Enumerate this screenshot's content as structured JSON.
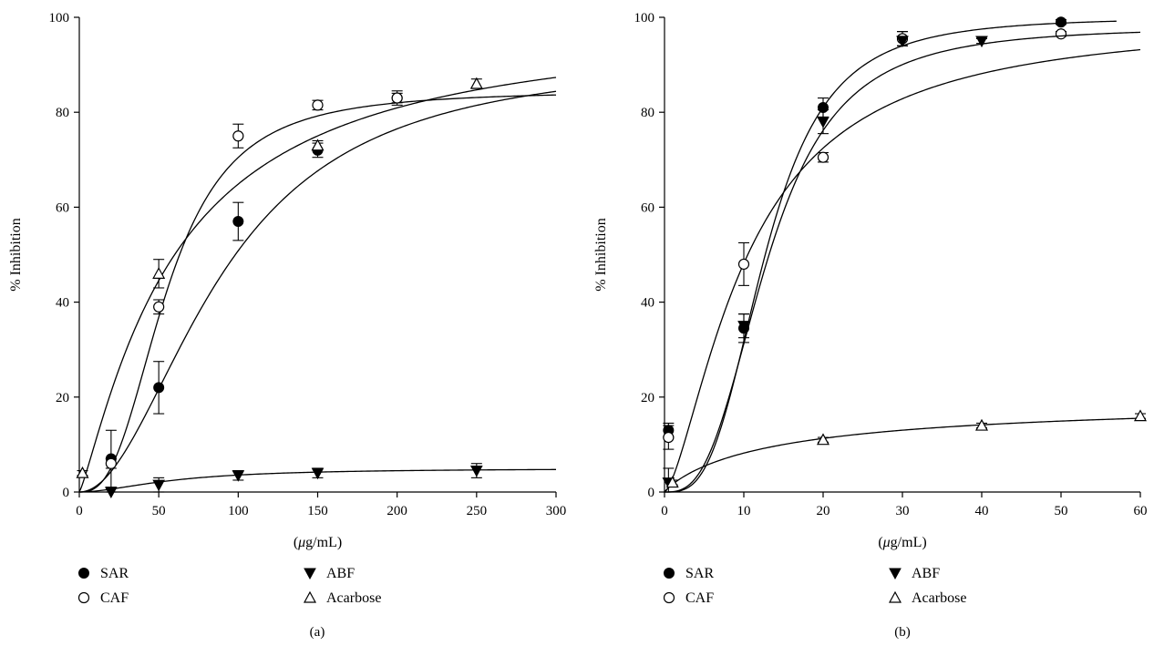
{
  "chart_data": [
    {
      "type": "scatter",
      "panel_label": "(a)",
      "xlabel_prefix": "(",
      "xlabel_mu": "μ",
      "xlabel_suffix": "g/mL)",
      "ylabel": "% Inhibition",
      "xlim": [
        0,
        300
      ],
      "ylim": [
        0,
        100
      ],
      "xticks": [
        0,
        50,
        100,
        150,
        200,
        250,
        300
      ],
      "yticks": [
        0,
        20,
        40,
        60,
        80,
        100
      ],
      "legend_position": "bottom",
      "series": [
        {
          "name": "SAR",
          "marker": "filled-circle",
          "x": [
            20,
            50,
            100,
            150,
            200
          ],
          "y": [
            7,
            22,
            57,
            72,
            83
          ],
          "err": [
            6,
            5.5,
            4,
            1.5,
            1.5
          ],
          "curve": {
            "model": "hill",
            "top": 92,
            "ec50": 90,
            "n": 2.0,
            "xmax": 300
          }
        },
        {
          "name": "CAF",
          "marker": "open-circle",
          "x": [
            20,
            50,
            100,
            150,
            200
          ],
          "y": [
            6,
            39,
            75,
            81.5,
            83
          ],
          "err": [
            1,
            1.5,
            2.5,
            1,
            1
          ],
          "curve": {
            "model": "hill",
            "top": 84.5,
            "ec50": 55,
            "n": 2.7,
            "xmax": 300
          }
        },
        {
          "name": "ABF",
          "marker": "filled-triangle-down",
          "x": [
            20,
            50,
            100,
            150,
            250
          ],
          "y": [
            0,
            1.5,
            3.5,
            4,
            4.5
          ],
          "err": [
            1,
            1.5,
            1,
            1,
            1.5
          ],
          "curve": {
            "model": "hill",
            "top": 5,
            "ec50": 60,
            "n": 1.8,
            "xmax": 300
          }
        },
        {
          "name": "Acarbose",
          "marker": "open-triangle-up",
          "x": [
            2,
            50,
            150,
            250
          ],
          "y": [
            4,
            46,
            73,
            86
          ],
          "err": [
            0.5,
            3,
            1,
            1
          ],
          "curve": {
            "model": "hill",
            "top": 100,
            "ec50": 60,
            "n": 1.2,
            "xmax": 300
          }
        }
      ]
    },
    {
      "type": "scatter",
      "panel_label": "(b)",
      "xlabel_prefix": "(",
      "xlabel_mu": "μ",
      "xlabel_suffix": "g/mL)",
      "ylabel": "% Inhibition",
      "xlim": [
        0,
        60
      ],
      "ylim": [
        0,
        100
      ],
      "xticks": [
        0,
        10,
        20,
        30,
        40,
        50,
        60
      ],
      "yticks": [
        0,
        20,
        40,
        60,
        80,
        100
      ],
      "legend_position": "bottom",
      "series": [
        {
          "name": "SAR",
          "marker": "filled-circle",
          "x": [
            0.5,
            10,
            20,
            30,
            50
          ],
          "y": [
            13,
            34.5,
            81,
            95.5,
            99
          ],
          "err": [
            1.5,
            3,
            2,
            1.5,
            0.5
          ],
          "curve": {
            "model": "hill",
            "top": 100,
            "ec50": 12.7,
            "n": 3.2,
            "xmax": 57
          }
        },
        {
          "name": "CAF",
          "marker": "open-circle",
          "x": [
            0.5,
            10,
            20,
            30,
            50
          ],
          "y": [
            11.5,
            48,
            70.5,
            95.5,
            96.5
          ],
          "err": [
            2.5,
            4.5,
            1,
            1.5,
            0.5
          ],
          "curve": {
            "model": "hill",
            "top": 100,
            "ec50": 10.5,
            "n": 1.5,
            "xmax": 60
          }
        },
        {
          "name": "ABF",
          "marker": "filled-triangle-down",
          "x": [
            0.5,
            10,
            20,
            30,
            40
          ],
          "y": [
            2,
            35,
            78,
            95,
            95
          ],
          "err": [
            3,
            2.5,
            2.5,
            1,
            0.5
          ],
          "curve": {
            "model": "hill",
            "top": 98,
            "ec50": 13,
            "n": 2.9,
            "xmax": 60
          }
        },
        {
          "name": "Acarbose",
          "marker": "open-triangle-up",
          "x": [
            1,
            20,
            40,
            60
          ],
          "y": [
            2,
            11,
            14,
            16
          ],
          "err": [
            0.5,
            0.5,
            0.5,
            0.5
          ],
          "curve": {
            "model": "hill",
            "top": 20,
            "ec50": 15,
            "n": 0.9,
            "xmax": 60
          }
        }
      ]
    }
  ]
}
